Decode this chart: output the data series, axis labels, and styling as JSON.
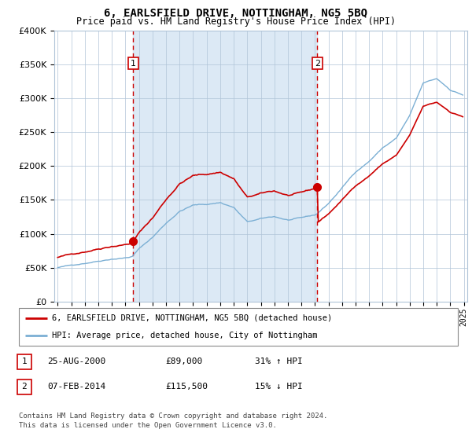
{
  "title": "6, EARLSFIELD DRIVE, NOTTINGHAM, NG5 5BQ",
  "subtitle": "Price paid vs. HM Land Registry's House Price Index (HPI)",
  "legend_line1": "6, EARLSFIELD DRIVE, NOTTINGHAM, NG5 5BQ (detached house)",
  "legend_line2": "HPI: Average price, detached house, City of Nottingham",
  "table_row1": [
    "1",
    "25-AUG-2000",
    "£89,000",
    "31% ↑ HPI"
  ],
  "table_row2": [
    "2",
    "07-FEB-2014",
    "£115,500",
    "15% ↓ HPI"
  ],
  "footnote1": "Contains HM Land Registry data © Crown copyright and database right 2024.",
  "footnote2": "This data is licensed under the Open Government Licence v3.0.",
  "red_line_color": "#cc0000",
  "blue_line_color": "#7bafd4",
  "shade_color": "#dce9f5",
  "marker_color": "#cc0000",
  "dashed_line_color": "#cc0000",
  "grid_color": "#b0c4d8",
  "ylim_min": 0,
  "ylim_max": 400000,
  "yticks": [
    0,
    50000,
    100000,
    150000,
    200000,
    250000,
    300000,
    350000,
    400000
  ],
  "m1": 67,
  "m2": 230,
  "v1": 89000,
  "v2": 115500,
  "n_months": 360,
  "start_year": 1995,
  "end_year": 2025
}
